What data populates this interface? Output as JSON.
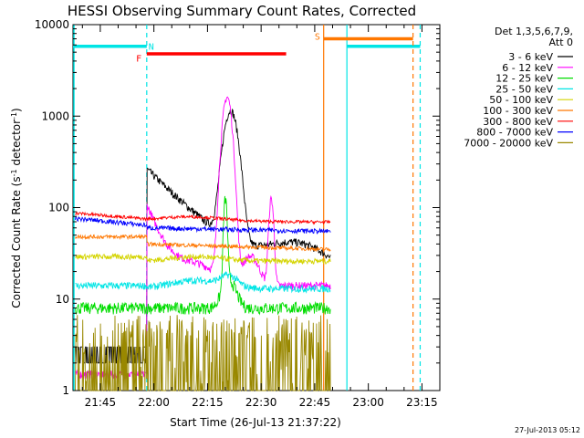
{
  "chart_data": {
    "type": "line",
    "title": "HESSI Observing Summary Count Rates, Corrected",
    "xlabel": "Start Time (26-Jul-13 21:37:22)",
    "ylabel": "Corrected Count Rate (s",
    "ylabel_sup": "-1",
    "ylabel_mid": " detector",
    "ylabel_sup2": "-1",
    "ylabel_end": ")",
    "y_scale": "log",
    "ylim": [
      1,
      10000
    ],
    "y_ticks": [
      {
        "v": 1,
        "label": "1"
      },
      {
        "v": 10,
        "label": "10"
      },
      {
        "v": 100,
        "label": "100"
      },
      {
        "v": 1000,
        "label": "1000"
      },
      {
        "v": 10000,
        "label": "10000"
      }
    ],
    "xlim": [
      "21:37:22",
      "23:20:00"
    ],
    "x_ticks": [
      "21:45",
      "22:00",
      "22:15",
      "22:30",
      "22:45",
      "23:00",
      "23:15"
    ],
    "legend_header": [
      "Det 1,3,5,6,7,9,",
      "Att 0"
    ],
    "legend_position": "right",
    "series": [
      {
        "name": "3 - 6 keV",
        "color": "#000000"
      },
      {
        "name": "6 - 12 keV",
        "color": "#ff00ff"
      },
      {
        "name": "12 - 25 keV",
        "color": "#00dd00"
      },
      {
        "name": "25 - 50 keV",
        "color": "#00e5e5"
      },
      {
        "name": "50 - 100 keV",
        "color": "#d4d400"
      },
      {
        "name": "100 - 300 keV",
        "color": "#ff7700"
      },
      {
        "name": "300 - 800 keV",
        "color": "#ff0000"
      },
      {
        "name": "800 - 7000 keV",
        "color": "#0000ff"
      },
      {
        "name": "7000 - 20000 keV",
        "color": "#998800"
      }
    ],
    "flags": [
      {
        "label": "N",
        "color": "#00e5e5"
      },
      {
        "label": "F",
        "color": "#ff0000"
      },
      {
        "label": "S",
        "color": "#ff7700"
      }
    ],
    "datestamp": "27-Jul-2013 05:12"
  }
}
